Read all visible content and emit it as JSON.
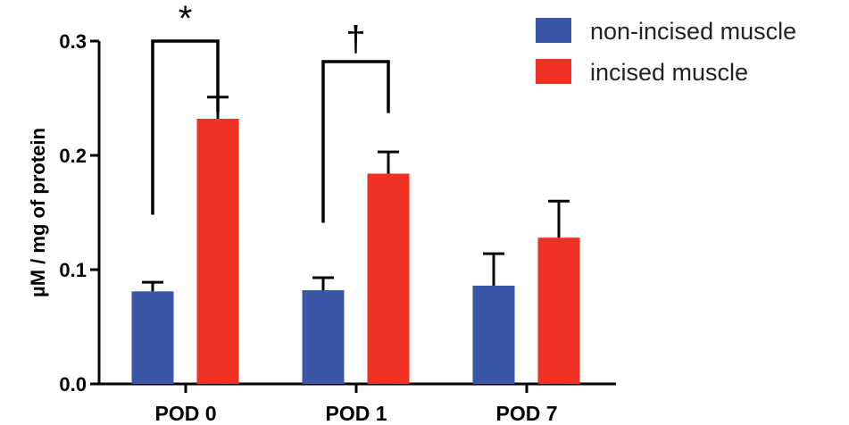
{
  "chart_data": {
    "type": "bar",
    "ylabel": "µM / mg of protein",
    "ylim": [
      0,
      0.3
    ],
    "yticks": [
      "0.0",
      "0.1",
      "0.2",
      "0.3"
    ],
    "categories": [
      "POD 0",
      "POD 1",
      "POD 7"
    ],
    "series": [
      {
        "name": "non-incised muscle",
        "color": "#3a57a7",
        "values": [
          0.081,
          0.082,
          0.086
        ],
        "errors": [
          0.008,
          0.011,
          0.028
        ]
      },
      {
        "name": "incised muscle",
        "color": "#ee3224",
        "values": [
          0.232,
          0.184,
          0.128
        ],
        "errors": [
          0.019,
          0.019,
          0.032
        ]
      }
    ],
    "significance": [
      {
        "category": "POD 0",
        "symbol": "*",
        "bracket_ends": [
          0.148,
          0.238
        ]
      },
      {
        "category": "POD 1",
        "symbol": "†",
        "bracket_ends": [
          0.141,
          0.237
        ]
      }
    ],
    "legend_position": "top-right",
    "grid": false
  }
}
